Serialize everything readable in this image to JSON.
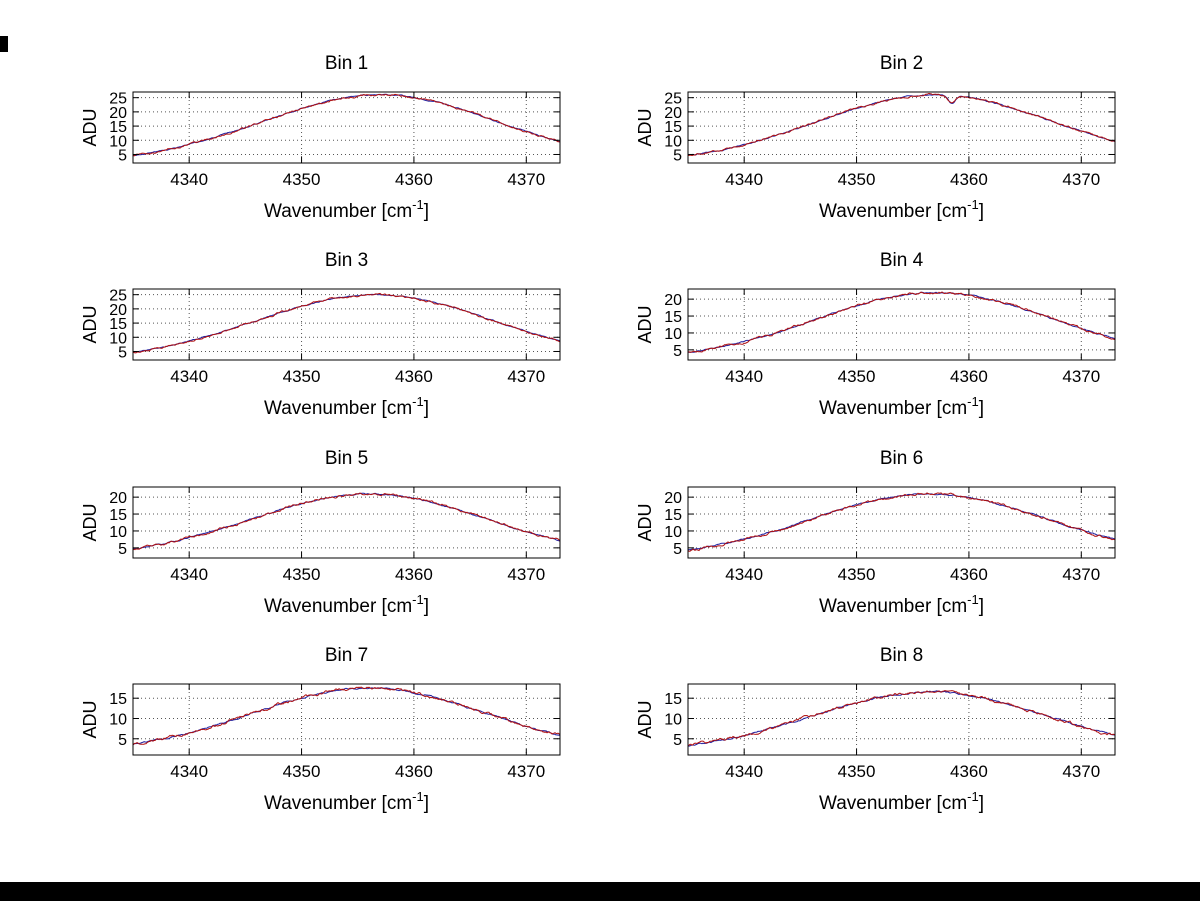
{
  "figure": {
    "background": "#ffffff",
    "axis_color": "#000000",
    "grid_color": "#555555",
    "line_color": "#b01010",
    "under_line_color": "#2020a0",
    "ylabel": "ADU",
    "xlabel_parts": [
      "Wavenumber [cm",
      "-1",
      "]"
    ]
  },
  "chart_data": [
    {
      "type": "line",
      "title": "Bin 1",
      "xlabel": "Wavenumber [cm^-1]",
      "ylabel": "ADU",
      "xlim": [
        4335,
        4373
      ],
      "ylim": [
        2,
        27
      ],
      "x_ticks": [
        4340,
        4350,
        4360,
        4370
      ],
      "y_ticks": [
        5,
        10,
        15,
        20,
        25
      ],
      "grid": "dotted",
      "legend": "none",
      "model": {
        "baseline": 2,
        "amplitude": 24,
        "center": 4357,
        "sigma": 10.5
      },
      "x": [
        4335,
        4337,
        4339,
        4341,
        4343,
        4345,
        4347,
        4349,
        4351,
        4353,
        4355,
        4357,
        4359,
        4361,
        4363,
        4365,
        4367,
        4369,
        4371,
        4373
      ],
      "y": [
        4.7,
        5.9,
        7.5,
        9.5,
        11.9,
        14.5,
        17.2,
        20.0,
        22.4,
        24.3,
        25.6,
        26.0,
        25.6,
        24.3,
        22.4,
        20.0,
        17.2,
        14.5,
        11.9,
        9.5
      ]
    },
    {
      "type": "line",
      "title": "Bin 2",
      "xlabel": "Wavenumber [cm^-1]",
      "ylabel": "ADU",
      "xlim": [
        4335,
        4373
      ],
      "ylim": [
        2,
        27
      ],
      "x_ticks": [
        4340,
        4350,
        4360,
        4370
      ],
      "y_ticks": [
        5,
        10,
        15,
        20,
        25
      ],
      "grid": "dotted",
      "legend": "none",
      "model": {
        "baseline": 2,
        "amplitude": 24,
        "center": 4357,
        "sigma": 10.5
      },
      "notch": {
        "center": 4358.5,
        "depth": 2.8,
        "sigma": 0.3
      },
      "x": [
        4335,
        4337,
        4339,
        4341,
        4343,
        4345,
        4347,
        4349,
        4351,
        4353,
        4355,
        4357,
        4359,
        4361,
        4363,
        4365,
        4367,
        4369,
        4371,
        4373
      ],
      "y": [
        4.7,
        5.9,
        7.5,
        9.5,
        11.9,
        14.5,
        17.2,
        20.0,
        22.4,
        24.3,
        25.6,
        26.0,
        24.8,
        24.3,
        22.4,
        20.0,
        17.2,
        14.5,
        11.9,
        9.5
      ]
    },
    {
      "type": "line",
      "title": "Bin 3",
      "xlabel": "Wavenumber [cm^-1]",
      "ylabel": "ADU",
      "xlim": [
        4335,
        4373
      ],
      "ylim": [
        2,
        27
      ],
      "x_ticks": [
        4340,
        4350,
        4360,
        4370
      ],
      "y_ticks": [
        5,
        10,
        15,
        20,
        25
      ],
      "grid": "dotted",
      "legend": "none",
      "model": {
        "baseline": 2,
        "amplitude": 23,
        "center": 4356.5,
        "sigma": 10.5
      },
      "x": [
        4335,
        4337,
        4339,
        4341,
        4343,
        4345,
        4347,
        4349,
        4351,
        4353,
        4355,
        4357,
        4359,
        4361,
        4363,
        4365,
        4367,
        4369,
        4371,
        4373
      ],
      "y": [
        4.6,
        5.7,
        7.3,
        9.2,
        11.5,
        14.0,
        16.6,
        19.2,
        21.5,
        23.4,
        24.6,
        25.0,
        24.6,
        23.4,
        21.5,
        19.2,
        16.6,
        14.0,
        11.5,
        9.2
      ]
    },
    {
      "type": "line",
      "title": "Bin 4",
      "xlabel": "Wavenumber [cm^-1]",
      "ylabel": "ADU",
      "xlim": [
        4335,
        4373
      ],
      "ylim": [
        2,
        23
      ],
      "x_ticks": [
        4340,
        4350,
        4360,
        4370
      ],
      "y_ticks": [
        5,
        10,
        15,
        20
      ],
      "grid": "dotted",
      "legend": "none",
      "model": {
        "baseline": 2,
        "amplitude": 20,
        "center": 4357,
        "sigma": 10.5
      },
      "x": [
        4335,
        4337,
        4339,
        4341,
        4343,
        4345,
        4347,
        4349,
        4351,
        4353,
        4355,
        4357,
        4359,
        4361,
        4363,
        4365,
        4367,
        4369,
        4371,
        4373
      ],
      "y": [
        4.2,
        5.3,
        6.6,
        8.3,
        10.2,
        12.4,
        14.7,
        17.0,
        19.0,
        20.6,
        21.6,
        22.0,
        21.6,
        20.6,
        19.0,
        17.0,
        14.7,
        12.4,
        10.2,
        8.3
      ]
    },
    {
      "type": "line",
      "title": "Bin 5",
      "xlabel": "Wavenumber [cm^-1]",
      "ylabel": "ADU",
      "xlim": [
        4335,
        4373
      ],
      "ylim": [
        2,
        23
      ],
      "x_ticks": [
        4340,
        4350,
        4360,
        4370
      ],
      "y_ticks": [
        5,
        10,
        15,
        20
      ],
      "grid": "dotted",
      "legend": "none",
      "model": {
        "baseline": 2,
        "amplitude": 19,
        "center": 4356,
        "sigma": 10.5
      },
      "x": [
        4335,
        4337,
        4339,
        4341,
        4343,
        4345,
        4347,
        4349,
        4351,
        4353,
        4355,
        4357,
        4359,
        4361,
        4363,
        4365,
        4367,
        4369,
        4371,
        4373
      ],
      "y": [
        4.1,
        5.1,
        6.4,
        7.9,
        9.8,
        11.9,
        14.1,
        16.2,
        18.1,
        19.7,
        20.7,
        21.0,
        20.7,
        19.7,
        18.1,
        16.2,
        14.1,
        11.9,
        9.8,
        7.9
      ]
    },
    {
      "type": "line",
      "title": "Bin 6",
      "xlabel": "Wavenumber [cm^-1]",
      "ylabel": "ADU",
      "xlim": [
        4335,
        4373
      ],
      "ylim": [
        2,
        23
      ],
      "x_ticks": [
        4340,
        4350,
        4360,
        4370
      ],
      "y_ticks": [
        5,
        10,
        15,
        20
      ],
      "grid": "dotted",
      "legend": "none",
      "model": {
        "baseline": 2,
        "amplitude": 19,
        "center": 4356.5,
        "sigma": 10.5
      },
      "x": [
        4335,
        4337,
        4339,
        4341,
        4343,
        4345,
        4347,
        4349,
        4351,
        4353,
        4355,
        4357,
        4359,
        4361,
        4363,
        4365,
        4367,
        4369,
        4371,
        4373
      ],
      "y": [
        4.1,
        5.1,
        6.4,
        7.9,
        9.8,
        11.9,
        14.1,
        16.2,
        18.1,
        19.7,
        20.7,
        21.0,
        20.7,
        19.7,
        18.1,
        16.2,
        14.1,
        11.9,
        9.8,
        7.9
      ]
    },
    {
      "type": "line",
      "title": "Bin 7",
      "xlabel": "Wavenumber [cm^-1]",
      "ylabel": "ADU",
      "xlim": [
        4335,
        4373
      ],
      "ylim": [
        1,
        18.5
      ],
      "x_ticks": [
        4340,
        4350,
        4360,
        4370
      ],
      "y_ticks": [
        5,
        10,
        15
      ],
      "grid": "dotted",
      "legend": "none",
      "model": {
        "baseline": 1.5,
        "amplitude": 16,
        "center": 4356,
        "sigma": 10.5
      },
      "x": [
        4335,
        4337,
        4339,
        4341,
        4343,
        4345,
        4347,
        4349,
        4351,
        4353,
        4355,
        4357,
        4359,
        4361,
        4363,
        4365,
        4367,
        4369,
        4371,
        4373
      ],
      "y": [
        3.3,
        4.1,
        5.2,
        6.5,
        8.1,
        9.8,
        11.7,
        13.5,
        15.1,
        16.4,
        17.2,
        17.5,
        17.2,
        16.4,
        15.1,
        13.5,
        11.7,
        9.8,
        8.1,
        6.5
      ]
    },
    {
      "type": "line",
      "title": "Bin 8",
      "xlabel": "Wavenumber [cm^-1]",
      "ylabel": "ADU",
      "xlim": [
        4335,
        4373
      ],
      "ylim": [
        1,
        18.5
      ],
      "x_ticks": [
        4340,
        4350,
        4360,
        4370
      ],
      "y_ticks": [
        5,
        10,
        15
      ],
      "grid": "dotted",
      "legend": "none",
      "model": {
        "baseline": 1.5,
        "amplitude": 15,
        "center": 4356.5,
        "sigma": 10.5
      },
      "x": [
        4335,
        4337,
        4339,
        4341,
        4343,
        4345,
        4347,
        4349,
        4351,
        4353,
        4355,
        4357,
        4359,
        4361,
        4363,
        4365,
        4367,
        4369,
        4371,
        4373
      ],
      "y": [
        3.2,
        3.9,
        5.0,
        6.2,
        7.7,
        9.3,
        11.0,
        12.7,
        14.2,
        15.5,
        16.2,
        16.5,
        16.2,
        15.5,
        14.2,
        12.7,
        11.0,
        9.3,
        7.7,
        6.2
      ]
    }
  ]
}
